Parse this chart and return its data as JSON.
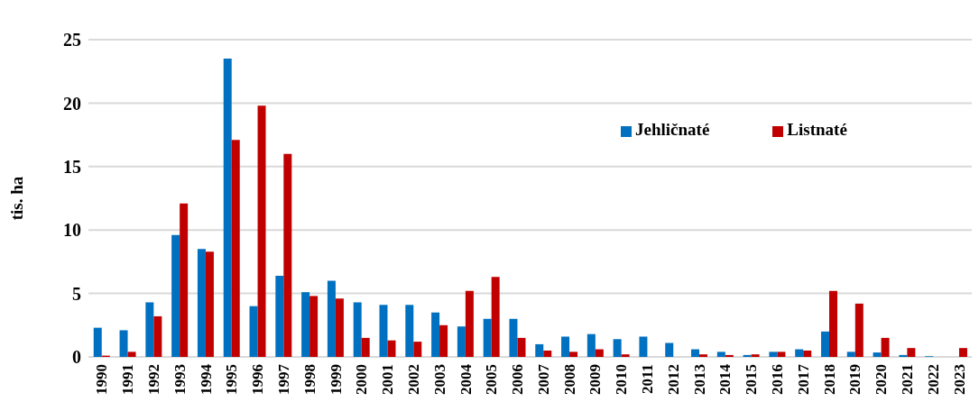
{
  "chart_data": {
    "type": "bar",
    "ylabel": "tis. ha",
    "categories": [
      "1990",
      "1991",
      "1992",
      "1993",
      "1994",
      "1995",
      "1996",
      "1997",
      "1998",
      "1999",
      "2000",
      "2001",
      "2002",
      "2003",
      "2004",
      "2005",
      "2006",
      "2007",
      "2008",
      "2009",
      "2010",
      "2011",
      "2012",
      "2013",
      "2014",
      "2015",
      "2016",
      "2017",
      "2018",
      "2019",
      "2020",
      "2021",
      "2022",
      "2023"
    ],
    "series": [
      {
        "name": "Jehličnaté",
        "color": "#0070c0",
        "values": [
          2.3,
          2.1,
          4.3,
          9.6,
          8.5,
          23.5,
          4.0,
          6.4,
          5.1,
          6.0,
          4.3,
          4.1,
          4.1,
          3.5,
          2.4,
          3.0,
          3.0,
          1.0,
          1.6,
          1.8,
          1.4,
          1.6,
          1.1,
          0.6,
          0.4,
          0.15,
          0.4,
          0.6,
          2.0,
          0.4,
          0.35,
          0.15,
          0.05,
          0
        ]
      },
      {
        "name": "Listnaté",
        "color": "#c00000",
        "values": [
          0.1,
          0.4,
          3.2,
          12.1,
          8.3,
          17.1,
          19.8,
          16.0,
          4.8,
          4.6,
          1.5,
          1.3,
          1.2,
          2.5,
          5.2,
          6.3,
          1.5,
          0.5,
          0.4,
          0.6,
          0.2,
          0,
          0,
          0.2,
          0.15,
          0.2,
          0.4,
          0.5,
          5.2,
          4.2,
          1.5,
          0.7,
          0,
          0.7
        ]
      }
    ],
    "ylim": [
      0,
      25
    ],
    "yticks": [
      0,
      5,
      10,
      15,
      20,
      25
    ],
    "grid": "y",
    "legend": "right"
  }
}
